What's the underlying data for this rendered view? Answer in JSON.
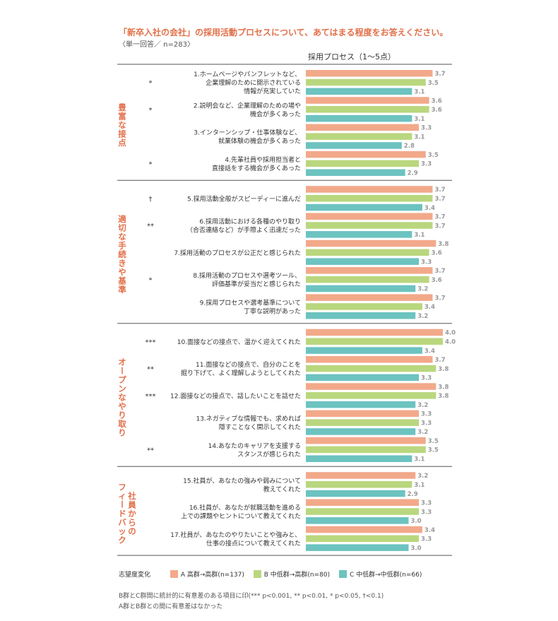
{
  "title": "「新卒入社の会社」の採用活動プロセスについて、あてはまる程度をお答えください。",
  "subtitle": "〈単一回答／ n=283〉",
  "colors": {
    "a": "#f2a98a",
    "b": "#b9d77e",
    "c": "#6cc3c0",
    "accent": "#e2704a"
  },
  "chart_data": {
    "type": "bar",
    "orientation": "horizontal",
    "title": "採用プロセス（1〜5点）",
    "xlim": [
      0,
      4.0
    ],
    "series": [
      {
        "name": "A 高群→高群(n=137)",
        "key": "a"
      },
      {
        "name": "B 中低群→高群(n=80)",
        "key": "b"
      },
      {
        "name": "C 中低群→中低群(n=66)",
        "key": "c"
      }
    ],
    "groups": [
      {
        "name": "豊富な接点",
        "items": [
          {
            "label": [
              "1.ホームページやパンフレットなど、",
              "企業理解のために開示されている",
              "情報が充実していた"
            ],
            "sig": "*",
            "values": [
              3.7,
              3.5,
              3.1
            ]
          },
          {
            "label": [
              "2.説明会など、企業理解のための場や",
              "機会が多くあった"
            ],
            "sig": "*",
            "values": [
              3.6,
              3.6,
              3.1
            ]
          },
          {
            "label": [
              "3.インターンシップ・仕事体験など、",
              "就業体験の機会が多くあった"
            ],
            "sig": "",
            "values": [
              3.3,
              3.1,
              2.8
            ]
          },
          {
            "label": [
              "4.先輩社員や採用担当者と",
              "直接話をする機会が多くあった"
            ],
            "sig": "*",
            "values": [
              3.5,
              3.3,
              2.9
            ]
          }
        ]
      },
      {
        "name": "適切な手続きや基準",
        "items": [
          {
            "label": [
              "5.採用活動全般がスピーディーに進んだ"
            ],
            "sig": "†",
            "values": [
              3.7,
              3.7,
              3.4
            ]
          },
          {
            "label": [
              "6.採用活動における各種のやり取り",
              "（合否連絡など）が手際よく迅速だった"
            ],
            "sig": "**",
            "values": [
              3.7,
              3.7,
              3.1
            ]
          },
          {
            "label": [
              "7.採用活動のプロセスが公正だと感じられた"
            ],
            "sig": "",
            "values": [
              3.8,
              3.6,
              3.3
            ]
          },
          {
            "label": [
              "8.採用活動のプロセスや選考ツール、",
              "評価基準が妥当だと感じられた"
            ],
            "sig": "*",
            "values": [
              3.7,
              3.6,
              3.2
            ]
          },
          {
            "label": [
              "9.採用プロセスや選考基準について",
              "丁寧な説明があった"
            ],
            "sig": "",
            "values": [
              3.7,
              3.4,
              3.2
            ]
          }
        ]
      },
      {
        "name": "オープンなやり取り",
        "items": [
          {
            "label": [
              "10.面接などの接点で、温かく迎えてくれた"
            ],
            "sig": "***",
            "values": [
              4.0,
              4.0,
              3.4
            ]
          },
          {
            "label": [
              "11.面接などの接点で、自分のことを",
              "掘り下げて、よく理解しようとしてくれた"
            ],
            "sig": "**",
            "values": [
              3.7,
              3.8,
              3.3
            ]
          },
          {
            "label": [
              "12.面接などの接点で、話したいことを話せた"
            ],
            "sig": "***",
            "values": [
              3.8,
              3.8,
              3.2
            ]
          },
          {
            "label": [
              "13.ネガティブな情報でも、求めれば",
              "隠すことなく開示してくれた"
            ],
            "sig": "",
            "values": [
              3.3,
              3.3,
              3.2
            ]
          },
          {
            "label": [
              "14.あなたのキャリアを支援する",
              "スタンスが感じられた"
            ],
            "sig": "**",
            "values": [
              3.5,
              3.5,
              3.1
            ]
          }
        ]
      },
      {
        "name": "社員からのフィードバック",
        "name_lines": [
          "社員からの",
          "フィードバック"
        ],
        "items": [
          {
            "label": [
              "15.社員が、あなたの強みや弱みについて",
              "教えてくれた"
            ],
            "sig": "",
            "values": [
              3.2,
              3.1,
              2.9
            ]
          },
          {
            "label": [
              "16.社員が、あなたが就職活動を進める",
              "上での課題やヒントについて教えてくれた"
            ],
            "sig": "",
            "values": [
              3.3,
              3.3,
              3.0
            ]
          },
          {
            "label": [
              "17.社員が、あなたのやりたいことや強みと、",
              "仕事の接点について教えてくれた"
            ],
            "sig": "",
            "values": [
              3.4,
              3.3,
              3.0
            ]
          }
        ]
      }
    ]
  },
  "legend": {
    "label": "志望度変化"
  },
  "notes": [
    "B群とC群間に統計的に有意差のある項目に印(*** p<0.001, ** p<0.01, * p<0.05, †<0.1)",
    "A群とB群との間に有意差はなかった"
  ]
}
